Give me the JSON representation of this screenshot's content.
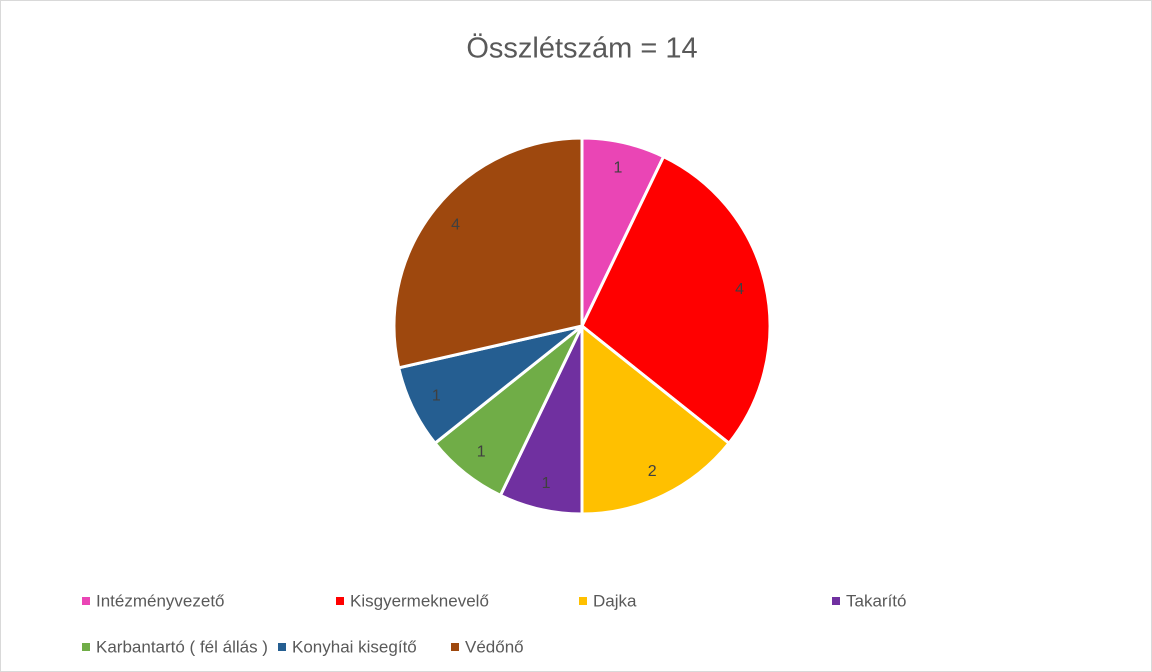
{
  "chart_data": {
    "type": "pie",
    "title": "Összlétszám = 14",
    "categories": [
      "Intézményvezető",
      "Kisgyermeknevelő",
      "Dajka",
      "Takarító",
      "Karbantartó ( fél állás )",
      "Konyhai kisegítő",
      "Védőnő"
    ],
    "values": [
      1,
      4,
      2,
      1,
      1,
      1,
      4
    ],
    "colors": [
      "#ea45b5",
      "#ff0000",
      "#ffc000",
      "#7030a0",
      "#70ad47",
      "#255e91",
      "#9e480e"
    ],
    "legend": "bottom"
  }
}
